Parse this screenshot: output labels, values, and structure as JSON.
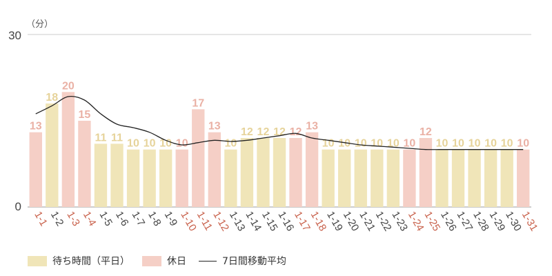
{
  "chart_data": {
    "type": "bar",
    "unit_label": "（分）",
    "ylim": [
      0,
      30
    ],
    "yticks": [
      "0",
      "30"
    ],
    "categories": [
      "1-1",
      "1-2",
      "1-3",
      "1-4",
      "1-5",
      "1-6",
      "1-7",
      "1-8",
      "1-9",
      "1-10",
      "1-11",
      "1-12",
      "1-13",
      "1-14",
      "1-15",
      "1-16",
      "1-17",
      "1-18",
      "1-19",
      "1-20",
      "1-21",
      "1-22",
      "1-23",
      "1-24",
      "1-25",
      "1-26",
      "1-27",
      "1-28",
      "1-29",
      "1-30",
      "1-31"
    ],
    "holidays": [
      true,
      false,
      true,
      true,
      false,
      false,
      false,
      false,
      false,
      true,
      true,
      true,
      false,
      false,
      false,
      false,
      true,
      true,
      false,
      false,
      false,
      false,
      false,
      true,
      true,
      false,
      false,
      false,
      false,
      false,
      true
    ],
    "values": [
      13,
      18,
      20,
      15,
      11,
      11,
      10,
      10,
      10,
      10,
      17,
      13,
      10,
      12,
      12,
      12,
      12,
      13,
      10,
      10,
      10,
      10,
      10,
      10,
      12,
      10,
      10,
      10,
      10,
      10,
      10
    ],
    "moving_average": [
      16.2,
      17.6,
      19.2,
      18.6,
      16.2,
      14.4,
      13.8,
      13.0,
      11.6,
      10.8,
      11.2,
      11.6,
      11.4,
      11.6,
      12.0,
      12.4,
      12.8,
      12.0,
      11.6,
      11.2,
      10.8,
      10.6,
      10.4,
      10.2,
      10.0,
      10.0,
      10.0,
      10.0,
      10.0,
      10.0,
      10.0
    ],
    "legend": {
      "weekday": "待ち時間（平日）",
      "holiday": "休日",
      "moving_average": "7日間移動平均"
    },
    "grid": true,
    "colors": {
      "weekday_bar": "#f0e5b8",
      "holiday_bar": "#f5cfc6",
      "weekday_label": "#e6d39a",
      "holiday_label": "#eab1a5",
      "weekday_tick": "#444444",
      "holiday_tick": "#c8604a",
      "line": "#222222",
      "grid": "#cccccc"
    }
  }
}
